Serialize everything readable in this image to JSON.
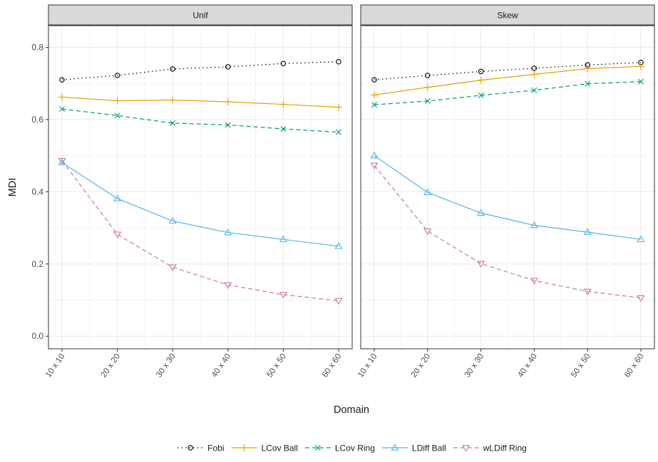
{
  "chart_data": {
    "type": "line",
    "ylabel": "MDI",
    "xlabel": "Domain",
    "categories": [
      "10 x 10",
      "20 x 20",
      "30 x 30",
      "40 x 40",
      "50 x 50",
      "60 x 60"
    ],
    "ylim": [
      -0.035,
      0.86
    ],
    "yticks": [
      0.0,
      0.2,
      0.4,
      0.6,
      0.8
    ],
    "ytick_labels": [
      "0.0",
      "0.2",
      "0.4",
      "0.6",
      "0.8"
    ],
    "grid": true,
    "legend_position": "bottom",
    "series_styles": [
      {
        "name": "Fobi",
        "color": "#000000",
        "dash": "dotted",
        "marker": "circle"
      },
      {
        "name": "LCov Ball",
        "color": "#E69F00",
        "dash": "solid",
        "marker": "plus"
      },
      {
        "name": "LCov Ring",
        "color": "#009E73",
        "dash": "dashed",
        "marker": "cross"
      },
      {
        "name": "LDiff Ball",
        "color": "#56B4E9",
        "dash": "solid",
        "marker": "triangle-up"
      },
      {
        "name": "wLDiff Ring",
        "color": "#CC79A7",
        "dash": "dashed",
        "marker": "triangle-down"
      }
    ],
    "panels": [
      {
        "title": "Unif",
        "series": [
          {
            "name": "Fobi",
            "values": [
              0.71,
              0.722,
              0.74,
              0.746,
              0.755,
              0.76
            ]
          },
          {
            "name": "LCov Ball",
            "values": [
              0.662,
              0.652,
              0.654,
              0.649,
              0.642,
              0.634
            ]
          },
          {
            "name": "LCov Ring",
            "values": [
              0.629,
              0.611,
              0.59,
              0.585,
              0.574,
              0.565
            ]
          },
          {
            "name": "LDiff Ball",
            "values": [
              0.481,
              0.381,
              0.319,
              0.287,
              0.268,
              0.249
            ]
          },
          {
            "name": "wLDiff Ring",
            "values": [
              0.486,
              0.282,
              0.191,
              0.142,
              0.115,
              0.098
            ]
          }
        ]
      },
      {
        "title": "Skew",
        "series": [
          {
            "name": "Fobi",
            "values": [
              0.71,
              0.722,
              0.733,
              0.742,
              0.751,
              0.758
            ]
          },
          {
            "name": "LCov Ball",
            "values": [
              0.668,
              0.689,
              0.709,
              0.725,
              0.741,
              0.747
            ]
          },
          {
            "name": "LCov Ring",
            "values": [
              0.641,
              0.651,
              0.667,
              0.681,
              0.699,
              0.705
            ]
          },
          {
            "name": "LDiff Ball",
            "values": [
              0.5,
              0.398,
              0.341,
              0.307,
              0.288,
              0.268
            ]
          },
          {
            "name": "wLDiff Ring",
            "values": [
              0.473,
              0.291,
              0.201,
              0.154,
              0.124,
              0.106
            ]
          }
        ]
      }
    ]
  }
}
